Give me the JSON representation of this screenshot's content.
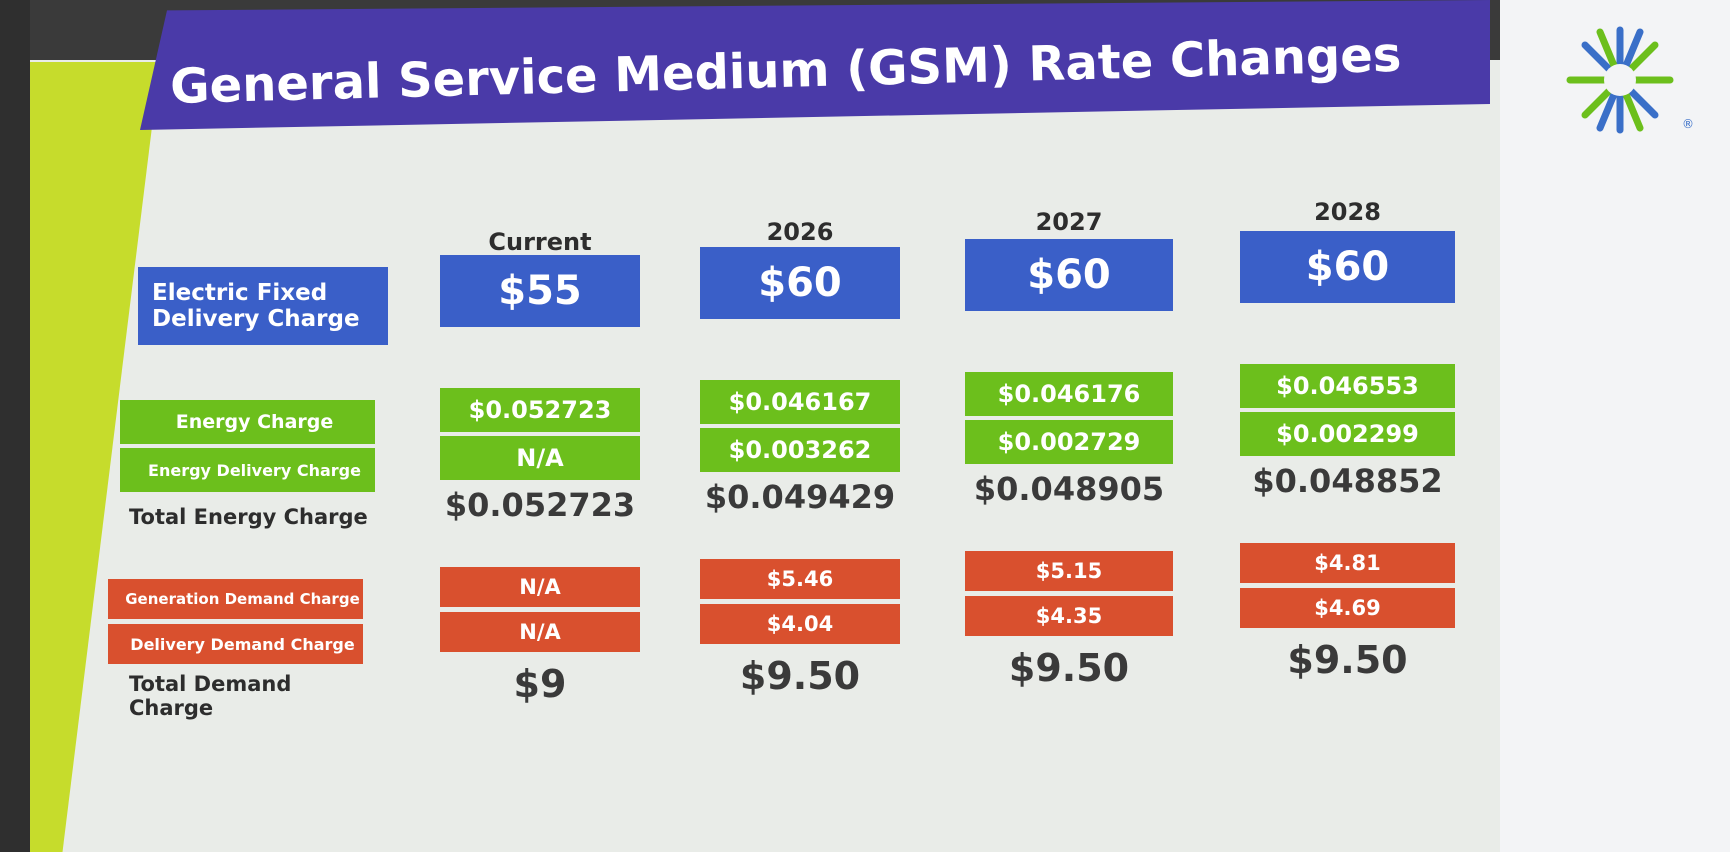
{
  "header": {
    "title": "General Service Medium (GSM) Rate Changes",
    "logo_mark": "®"
  },
  "table": {
    "columns": [
      "Current",
      "2026",
      "2027",
      "2028"
    ],
    "rows": [
      {
        "label": "Electric Fixed Delivery Charge",
        "values": [
          "$55",
          "$60",
          "$60",
          "$60"
        ]
      },
      {
        "label": "Energy Charge",
        "values": [
          "$0.052723",
          "$0.046167",
          "$0.046176",
          "$0.046553"
        ]
      },
      {
        "label": "Energy Delivery Charge",
        "values": [
          "N/A",
          "$0.003262",
          "$0.002729",
          "$0.002299"
        ]
      },
      {
        "label": "Total Energy Charge",
        "values": [
          "$0.052723",
          "$0.049429",
          "$0.048905",
          "$0.048852"
        ]
      },
      {
        "label": "Generation Demand Charge",
        "values": [
          "N/A",
          "$5.46",
          "$5.15",
          "$4.81"
        ]
      },
      {
        "label": "Delivery Demand Charge",
        "values": [
          "N/A",
          "$4.04",
          "$4.35",
          "$4.69"
        ]
      },
      {
        "label": "Total Demand Charge",
        "values": [
          "$9",
          "$9.50",
          "$9.50",
          "$9.50"
        ]
      }
    ]
  }
}
